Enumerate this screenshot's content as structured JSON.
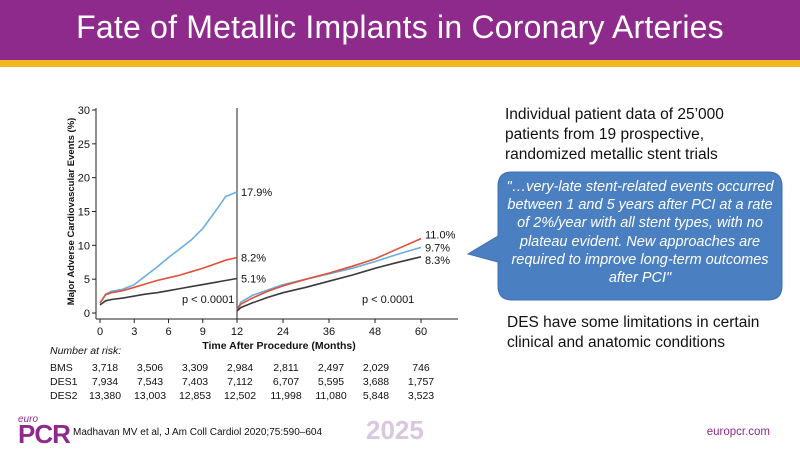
{
  "slide": {
    "title": "Fate of Metallic Implants in Coronary Arteries",
    "intro_text": "Individual patient data of 25’000 patients from 19 prospective, randomized metallic stent trials",
    "quote_text": "\"…very-late stent-related events occurred between 1 and 5 years after PCI at a rate of 2%/year with all stent types, with no plateau evident. New approaches are required to improve long-term outcomes after PCI\"",
    "des_note": "DES have some limitations in certain clinical and anatomic conditions",
    "citation": "Madhavan MV et al, J Am Coll Cardiol 2020;75:590–604",
    "year": "2025",
    "site": "europcr.com",
    "logo_small": "euro",
    "logo_big": "PCR"
  },
  "colors": {
    "brand_purple": "#8e2a8b",
    "accent_yellow": "#f2b824",
    "callout_blue": "#4a7fc1",
    "bms": "#6aaee0",
    "des1": "#e0503a",
    "des2": "#3a3a3a"
  },
  "chart_data": {
    "type": "line",
    "ylabel": "Major Adverse Cardiovascular Events (%)",
    "xlabel": "Time After Procedure (Months)",
    "x_ticks": [
      0,
      3,
      6,
      9,
      12,
      24,
      36,
      48,
      60
    ],
    "x_tick_labels": [
      "0",
      "3",
      "6",
      "9",
      "12",
      "24",
      "36",
      "48",
      "60"
    ],
    "y_ticks": [
      0,
      5,
      10,
      15,
      20,
      25,
      30
    ],
    "y_tick_labels": [
      "0",
      "5",
      "10",
      "15",
      "20",
      "25",
      "30"
    ],
    "ylim": [
      0,
      30
    ],
    "landmark_month": 12,
    "p_values": [
      "p < 0.0001",
      "p < 0.0001"
    ],
    "series": [
      {
        "name": "BMS",
        "color": "#6aaee0",
        "early": [
          [
            0,
            1.5
          ],
          [
            0.5,
            2.8
          ],
          [
            1,
            3.2
          ],
          [
            2,
            3.5
          ],
          [
            3,
            4.2
          ],
          [
            4,
            5.5
          ],
          [
            5,
            6.8
          ],
          [
            6,
            8.2
          ],
          [
            7,
            9.5
          ],
          [
            8,
            10.8
          ],
          [
            9,
            12.5
          ],
          [
            10,
            14.8
          ],
          [
            11,
            17.2
          ],
          [
            12,
            17.9
          ]
        ],
        "late": [
          [
            12,
            0.5
          ],
          [
            13,
            1.6
          ],
          [
            16,
            2.6
          ],
          [
            20,
            3.4
          ],
          [
            24,
            4.2
          ],
          [
            30,
            5.0
          ],
          [
            36,
            5.8
          ],
          [
            42,
            6.6
          ],
          [
            48,
            7.6
          ],
          [
            54,
            8.7
          ],
          [
            60,
            9.7
          ]
        ],
        "early_end_label": "17.9%",
        "late_end_label": "9.7%"
      },
      {
        "name": "DES1",
        "color": "#e0503a",
        "early": [
          [
            0,
            1.5
          ],
          [
            0.5,
            2.7
          ],
          [
            1,
            3.0
          ],
          [
            2,
            3.3
          ],
          [
            3,
            3.8
          ],
          [
            4,
            4.3
          ],
          [
            5,
            4.8
          ],
          [
            6,
            5.2
          ],
          [
            7,
            5.6
          ],
          [
            8,
            6.1
          ],
          [
            9,
            6.6
          ],
          [
            10,
            7.2
          ],
          [
            11,
            7.8
          ],
          [
            12,
            8.2
          ]
        ],
        "late": [
          [
            12,
            0.5
          ],
          [
            13,
            1.3
          ],
          [
            16,
            2.2
          ],
          [
            20,
            3.2
          ],
          [
            24,
            4.0
          ],
          [
            30,
            5.0
          ],
          [
            36,
            5.9
          ],
          [
            42,
            6.9
          ],
          [
            48,
            8.0
          ],
          [
            54,
            9.5
          ],
          [
            60,
            11.0
          ]
        ],
        "early_end_label": "8.2%",
        "late_end_label": "11.0%"
      },
      {
        "name": "DES2",
        "color": "#3a3a3a",
        "early": [
          [
            0,
            1.2
          ],
          [
            0.5,
            1.8
          ],
          [
            1,
            2.0
          ],
          [
            2,
            2.2
          ],
          [
            3,
            2.5
          ],
          [
            4,
            2.8
          ],
          [
            5,
            3.0
          ],
          [
            6,
            3.3
          ],
          [
            7,
            3.6
          ],
          [
            8,
            3.9
          ],
          [
            9,
            4.2
          ],
          [
            10,
            4.5
          ],
          [
            11,
            4.8
          ],
          [
            12,
            5.1
          ]
        ],
        "late": [
          [
            12,
            0.3
          ],
          [
            13,
            0.8
          ],
          [
            16,
            1.5
          ],
          [
            20,
            2.3
          ],
          [
            24,
            3.0
          ],
          [
            30,
            3.8
          ],
          [
            36,
            4.7
          ],
          [
            42,
            5.6
          ],
          [
            48,
            6.6
          ],
          [
            54,
            7.5
          ],
          [
            60,
            8.3
          ]
        ],
        "early_end_label": "5.1%",
        "late_end_label": "8.3%"
      }
    ],
    "risk_table": {
      "title": "Number at risk:",
      "rows": [
        {
          "label": "BMS",
          "values": [
            "3,718",
            "3,506",
            "3,309",
            "2,984",
            "2,811",
            "2,497",
            "2,029",
            "746"
          ]
        },
        {
          "label": "DES1",
          "values": [
            "7,934",
            "7,543",
            "7,403",
            "7,112",
            "6,707",
            "5,595",
            "3,688",
            "1,757"
          ]
        },
        {
          "label": "DES2",
          "values": [
            "13,380",
            "13,003",
            "12,853",
            "12,502",
            "11,998",
            "11,080",
            "5,848",
            "3,523"
          ]
        }
      ]
    }
  }
}
